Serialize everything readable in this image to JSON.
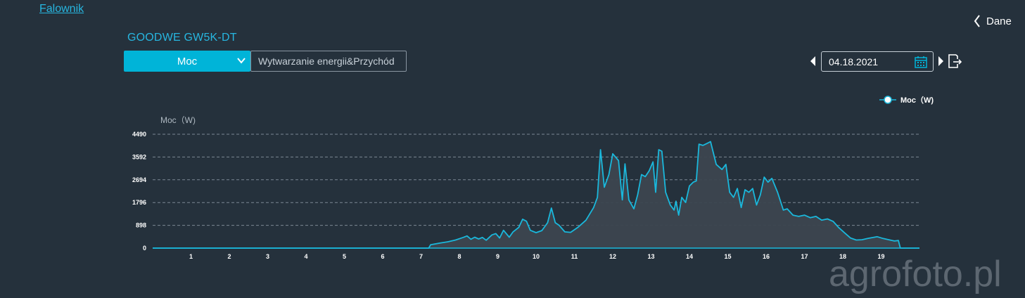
{
  "nav": {
    "link_label": "Falownik",
    "back_label": "Dane"
  },
  "device": {
    "title": "GOODWE GW5K-DT"
  },
  "controls": {
    "mode_selected": "Moc",
    "energy_tab": "Wytwarzanie energii&Przychód",
    "date": "04.18.2021"
  },
  "icons": {
    "back": "chevron-left-icon",
    "dropdown": "chevron-down-icon",
    "prev": "caret-left-icon",
    "next": "caret-right-icon",
    "calendar": "calendar-icon",
    "export": "export-icon"
  },
  "colors": {
    "accent": "#00b4d8",
    "line": "#1ab8dc",
    "area": "#3c464f",
    "background": "#25313c"
  },
  "watermark": "agrofoto.pl",
  "chart_data": {
    "type": "area",
    "ylabel": "Moc（W)",
    "legend": {
      "label": "Moc（W)",
      "position": "top-right"
    },
    "ylim": [
      0,
      4490
    ],
    "yticks": [
      0,
      898,
      1796,
      2694,
      3592,
      4490
    ],
    "xlim": [
      0,
      20
    ],
    "xticks": [
      1,
      2,
      3,
      4,
      5,
      6,
      7,
      8,
      9,
      10,
      11,
      12,
      13,
      14,
      15,
      16,
      17,
      18,
      19
    ],
    "grid": "horizontal-dashed",
    "series": [
      {
        "name": "Moc（W)",
        "points": [
          [
            0,
            0
          ],
          [
            7.2,
            0
          ],
          [
            7.25,
            130
          ],
          [
            7.5,
            200
          ],
          [
            7.7,
            250
          ],
          [
            7.9,
            320
          ],
          [
            8.1,
            420
          ],
          [
            8.2,
            480
          ],
          [
            8.3,
            350
          ],
          [
            8.4,
            430
          ],
          [
            8.5,
            360
          ],
          [
            8.6,
            420
          ],
          [
            8.7,
            310
          ],
          [
            8.85,
            520
          ],
          [
            8.95,
            570
          ],
          [
            9.05,
            400
          ],
          [
            9.15,
            700
          ],
          [
            9.3,
            430
          ],
          [
            9.4,
            640
          ],
          [
            9.55,
            820
          ],
          [
            9.65,
            1140
          ],
          [
            9.75,
            1060
          ],
          [
            9.85,
            700
          ],
          [
            10.0,
            610
          ],
          [
            10.15,
            690
          ],
          [
            10.3,
            1000
          ],
          [
            10.4,
            1580
          ],
          [
            10.5,
            1000
          ],
          [
            10.6,
            900
          ],
          [
            10.75,
            640
          ],
          [
            10.9,
            620
          ],
          [
            11.1,
            830
          ],
          [
            11.3,
            1100
          ],
          [
            11.5,
            1600
          ],
          [
            11.6,
            2000
          ],
          [
            11.68,
            3880
          ],
          [
            11.78,
            2400
          ],
          [
            11.9,
            2900
          ],
          [
            12.0,
            3720
          ],
          [
            12.15,
            3450
          ],
          [
            12.25,
            1900
          ],
          [
            12.32,
            3320
          ],
          [
            12.42,
            1900
          ],
          [
            12.55,
            1550
          ],
          [
            12.65,
            2100
          ],
          [
            12.75,
            2900
          ],
          [
            12.85,
            2820
          ],
          [
            12.95,
            3050
          ],
          [
            13.05,
            3400
          ],
          [
            13.12,
            2200
          ],
          [
            13.2,
            3880
          ],
          [
            13.28,
            3820
          ],
          [
            13.38,
            2200
          ],
          [
            13.5,
            1700
          ],
          [
            13.6,
            1500
          ],
          [
            13.65,
            1850
          ],
          [
            13.72,
            1300
          ],
          [
            13.8,
            2000
          ],
          [
            13.9,
            1800
          ],
          [
            14.0,
            2450
          ],
          [
            14.1,
            2600
          ],
          [
            14.18,
            2650
          ],
          [
            14.25,
            4100
          ],
          [
            14.35,
            4050
          ],
          [
            14.45,
            4120
          ],
          [
            14.55,
            4200
          ],
          [
            14.7,
            3300
          ],
          [
            14.85,
            3100
          ],
          [
            14.95,
            3300
          ],
          [
            15.05,
            2200
          ],
          [
            15.15,
            2000
          ],
          [
            15.25,
            2350
          ],
          [
            15.35,
            1600
          ],
          [
            15.45,
            2300
          ],
          [
            15.55,
            2200
          ],
          [
            15.65,
            2350
          ],
          [
            15.75,
            1700
          ],
          [
            15.85,
            2100
          ],
          [
            15.95,
            2800
          ],
          [
            16.05,
            2600
          ],
          [
            16.15,
            2750
          ],
          [
            16.3,
            2200
          ],
          [
            16.45,
            1500
          ],
          [
            16.55,
            1550
          ],
          [
            16.7,
            1300
          ],
          [
            16.85,
            1250
          ],
          [
            17.0,
            1300
          ],
          [
            17.15,
            1200
          ],
          [
            17.3,
            1250
          ],
          [
            17.45,
            1100
          ],
          [
            17.6,
            1150
          ],
          [
            17.75,
            1050
          ],
          [
            17.9,
            800
          ],
          [
            18.05,
            600
          ],
          [
            18.2,
            400
          ],
          [
            18.35,
            320
          ],
          [
            18.5,
            330
          ],
          [
            18.65,
            380
          ],
          [
            18.8,
            420
          ],
          [
            18.9,
            450
          ],
          [
            19.05,
            380
          ],
          [
            19.2,
            330
          ],
          [
            19.35,
            280
          ],
          [
            19.45,
            300
          ],
          [
            19.5,
            0
          ],
          [
            20,
            0
          ]
        ]
      }
    ]
  }
}
